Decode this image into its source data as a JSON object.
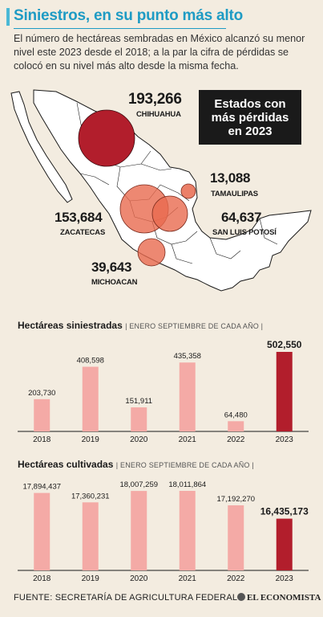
{
  "header": {
    "title": "Siniestros, en su punto más alto",
    "intro": "El número de hectáreas sembradas en México alcanzó su menor nivel este 2023 desde el 2018; a la par la cifra de pérdidas se colocó en su nivel más alto desde la misma fecha."
  },
  "map": {
    "legend": "Estados con\nmás pérdidas\nen 2023",
    "states": [
      {
        "name": "CHIHUAHUA",
        "value": "193,266"
      },
      {
        "name": "TAMAULIPAS",
        "value": "13,088"
      },
      {
        "name": "ZACATECAS",
        "value": "153,684"
      },
      {
        "name": "SAN LUIS POTOSÍ",
        "value": "64,637"
      },
      {
        "name": "MICHOACAN",
        "value": "39,643"
      }
    ],
    "colors": {
      "land": "#ffffff",
      "border": "#1a1a1a",
      "bubble_dark": "#b21e2c",
      "bubble_light": "#e86a4f"
    }
  },
  "chart_data": [
    {
      "type": "bar",
      "title": "Hectáreas siniestradas",
      "subtitle": "ENERO SEPTIEMBRE DE CADA AÑO",
      "categories": [
        "2018",
        "2019",
        "2020",
        "2021",
        "2022",
        "2023"
      ],
      "values": [
        203730,
        408598,
        151911,
        435358,
        64480,
        502550
      ],
      "labels": [
        "203,730",
        "408,598",
        "151,911",
        "435,358",
        "64,480",
        "502,550"
      ],
      "highlight_index": 5,
      "ylim": [
        0,
        502550
      ],
      "colors": {
        "bar": "#f4aaa6",
        "highlight": "#b21e2c"
      }
    },
    {
      "type": "bar",
      "title": "Hectáreas cultivadas",
      "subtitle": "ENERO SEPTIEMBRE DE CADA AÑO",
      "categories": [
        "2018",
        "2019",
        "2020",
        "2021",
        "2022",
        "2023"
      ],
      "values": [
        17894437,
        17360231,
        18007259,
        18011864,
        17192270,
        16435173
      ],
      "labels": [
        "17,894,437",
        "17,360,231",
        "18,007,259",
        "18,011,864",
        "17,192,270",
        "16,435,173"
      ],
      "highlight_index": 5,
      "ylim": [
        13500000,
        18011864
      ],
      "colors": {
        "bar": "#f4aaa6",
        "highlight": "#b21e2c"
      }
    }
  ],
  "footer": {
    "source": "FUENTE: SECRETARÍA DE AGRICULTURA FEDERAL",
    "brand": "EL ECONOMISTA"
  }
}
